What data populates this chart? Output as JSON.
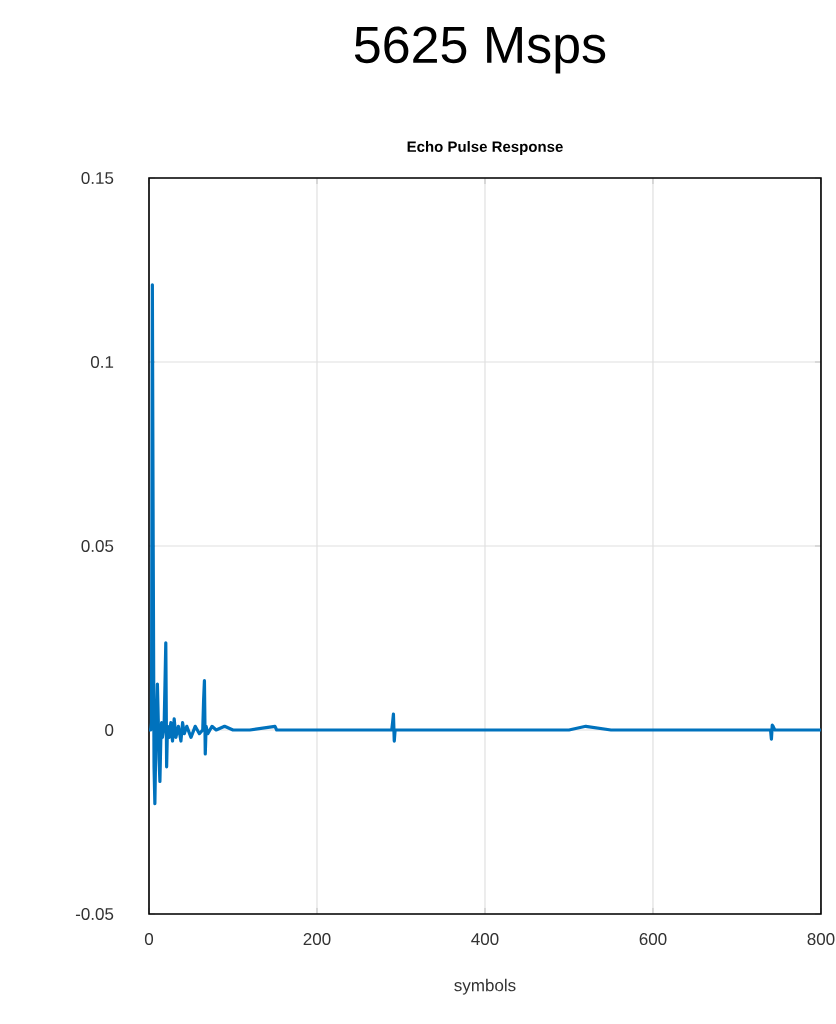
{
  "chart_data": {
    "type": "line",
    "title": "5625 Msps",
    "subtitle": "Echo Pulse Response",
    "xlabel": "symbols",
    "xlim": [
      0,
      800
    ],
    "ylim": [
      -0.05,
      0.15
    ],
    "xticks": [
      0,
      200,
      400,
      600,
      800
    ],
    "yticks": [
      -0.05,
      0,
      0.05,
      0.1,
      0.15
    ],
    "grid": true,
    "marker": "none",
    "line_style": "solid",
    "series": [
      {
        "color": "#0072bd",
        "x": [
          0,
          2,
          3,
          4,
          5,
          6,
          7,
          8,
          9,
          10,
          11,
          12,
          13,
          14,
          15,
          16,
          18,
          19,
          20,
          21,
          22,
          24,
          26,
          28,
          30,
          32,
          35,
          38,
          40,
          42,
          45,
          50,
          55,
          60,
          64,
          65,
          66,
          67,
          68,
          70,
          75,
          80,
          90,
          100,
          120,
          150,
          152,
          160,
          200,
          250,
          289,
          290,
          291,
          292,
          293,
          300,
          350,
          400,
          450,
          500,
          520,
          550,
          600,
          650,
          700,
          738,
          740,
          741,
          742,
          743,
          745,
          750,
          800
        ],
        "values": [
          0,
          0,
          0.002,
          0.121,
          0.05,
          -0.01,
          -0.02,
          -0.005,
          0.004,
          0.0125,
          0.003,
          -0.008,
          -0.014,
          -0.003,
          0.002,
          -0.002,
          0.001,
          0.012,
          0.0237,
          -0.01,
          0.001,
          -0.002,
          0.002,
          -0.003,
          0.003,
          -0.002,
          0.001,
          -0.003,
          0.002,
          -0.001,
          0.001,
          -0.002,
          0.001,
          -0.001,
          0,
          0.008,
          0.0134,
          -0.0065,
          0.001,
          -0.001,
          0.001,
          0,
          0.001,
          0,
          0,
          0.001,
          0,
          0,
          0,
          0,
          0,
          0.002,
          0.0043,
          -0.003,
          0,
          0,
          0,
          0,
          0,
          0,
          0.001,
          0,
          0,
          0,
          0,
          0,
          0,
          -0.0025,
          0.0013,
          0.001,
          0,
          0,
          0
        ]
      }
    ]
  }
}
